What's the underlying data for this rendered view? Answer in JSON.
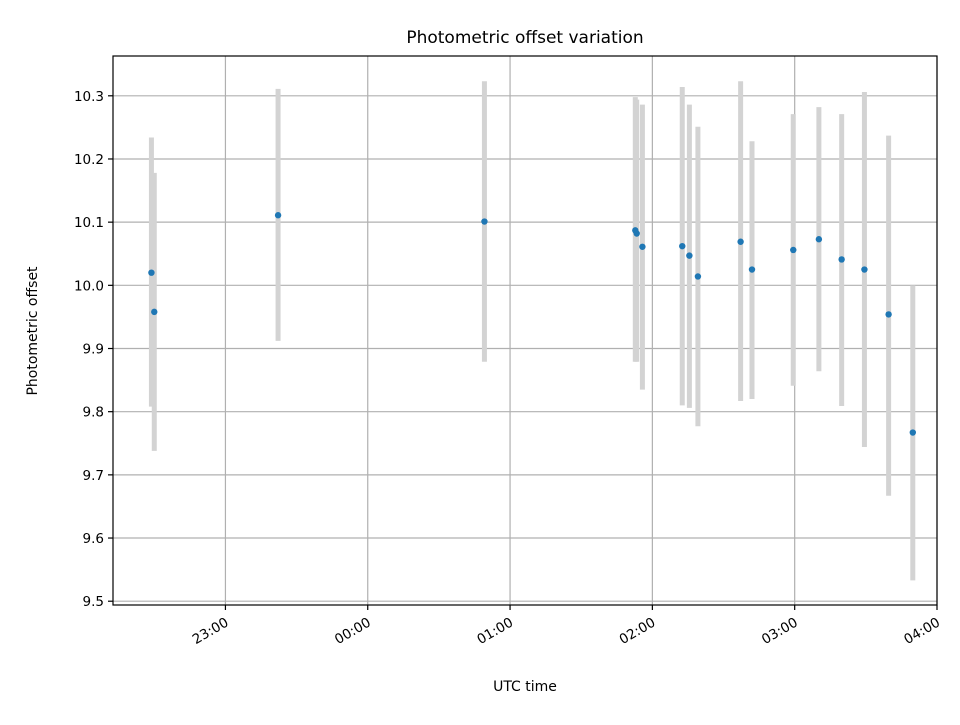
{
  "chart_data": {
    "type": "scatter",
    "title": "Photometric offset variation",
    "xlabel": "UTC time",
    "ylabel": "Photometric offset",
    "x_ticks": [
      "23:00",
      "00:00",
      "01:00",
      "02:00",
      "03:00",
      "04:00"
    ],
    "x_tick_hours": [
      23,
      24,
      25,
      26,
      27,
      28
    ],
    "xlim": [
      22.21,
      28.0
    ],
    "y_ticks": [
      "9.5",
      "9.6",
      "9.7",
      "9.8",
      "9.9",
      "10.0",
      "10.1",
      "10.2",
      "10.3"
    ],
    "ylim": [
      9.494,
      10.363
    ],
    "grid": true,
    "x_tick_rotation": -30,
    "colors": {
      "points": "#1f77b4",
      "errorbars": "#d3d3d3",
      "grid": "#b0b0b0",
      "axes": "#000000"
    },
    "series": [
      {
        "x_time": [
          "22:29",
          "22:30",
          "23:22",
          "00:49",
          "01:53",
          "01:54",
          "01:57",
          "02:12",
          "02:15",
          "02:19",
          "02:37",
          "02:42",
          "02:59",
          "03:10",
          "03:19",
          "03:30",
          "03:40",
          "03:50"
        ],
        "x_hours": [
          22.48,
          22.5,
          23.37,
          24.82,
          25.88,
          25.89,
          25.93,
          26.21,
          26.26,
          26.32,
          26.62,
          26.7,
          26.99,
          27.17,
          27.33,
          27.49,
          27.66,
          27.83
        ],
        "y": [
          10.02,
          9.958,
          10.111,
          10.101,
          10.087,
          10.082,
          10.061,
          10.062,
          10.047,
          10.014,
          10.069,
          10.025,
          10.056,
          10.073,
          10.041,
          10.025,
          9.954,
          9.767
        ],
        "y_low": [
          9.808,
          9.738,
          9.912,
          9.879,
          9.879,
          9.879,
          9.835,
          9.81,
          9.806,
          9.777,
          9.817,
          9.82,
          9.841,
          9.864,
          9.809,
          9.744,
          9.667,
          9.533
        ],
        "y_high": [
          10.234,
          10.178,
          10.311,
          10.323,
          10.298,
          10.294,
          10.286,
          10.314,
          10.286,
          10.251,
          10.323,
          10.228,
          10.271,
          10.282,
          10.271,
          10.306,
          10.237,
          10.0
        ]
      }
    ]
  }
}
